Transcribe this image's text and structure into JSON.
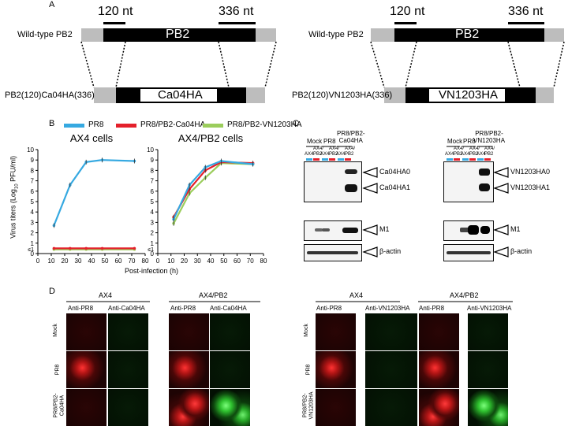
{
  "panels": {
    "A": "A",
    "B": "B",
    "C": "C",
    "D": "D"
  },
  "panelA": {
    "left": {
      "marker_left": "120 nt",
      "marker_right": "336 nt",
      "wt_label": "Wild-type PB2",
      "wt_box": "PB2",
      "recomb_label": "PB2(120)Ca04HA(336)",
      "insert": "Ca04HA"
    },
    "right": {
      "marker_left": "120 nt",
      "marker_right": "336 nt",
      "wt_label": "Wild-type PB2",
      "wt_box": "PB2",
      "recomb_label": "PB2(120)VN1203HA(336)",
      "insert": "VN1203HA"
    }
  },
  "panelB": {
    "legend": [
      {
        "name": "PR8",
        "color": "#36a9e1"
      },
      {
        "name": "PR8/PB2-Ca04HA",
        "color": "#e4202b"
      },
      {
        "name": "PR8/PB2-VN1203HA",
        "color": "#9bcd5c"
      }
    ],
    "ylabel": "Virus titers (Log",
    "ylabel_sub": "10",
    "ylabel_tail": " PFU/ml)",
    "xlabel": "Post-infection (h)",
    "lod_label": "≤1"
  },
  "chart_data": [
    {
      "type": "line",
      "title": "AX4 cells",
      "x": [
        12,
        24,
        36,
        48,
        72
      ],
      "xlim": [
        0,
        80
      ],
      "ylim": [
        0,
        10
      ],
      "xticks": [
        "0",
        "10",
        "20",
        "30",
        "40",
        "50",
        "60",
        "70",
        "80"
      ],
      "yticks": [
        "0",
        "1",
        "2",
        "3",
        "4",
        "5",
        "6",
        "7",
        "8",
        "9",
        "10"
      ],
      "series": [
        {
          "name": "PR8",
          "color": "#36a9e1",
          "values": [
            2.7,
            6.6,
            8.8,
            9.0,
            8.9
          ]
        },
        {
          "name": "PR8/PB2-Ca04HA",
          "color": "#e4202b",
          "values": [
            0.5,
            0.5,
            0.5,
            0.5,
            0.5
          ]
        },
        {
          "name": "PR8/PB2-VN1203HA",
          "color": "#9bcd5c",
          "values": [
            0.4,
            0.4,
            0.4,
            0.4,
            0.4
          ]
        }
      ]
    },
    {
      "type": "line",
      "title": "AX4/PB2 cells",
      "x": [
        12,
        24,
        36,
        48,
        72
      ],
      "xlim": [
        0,
        80
      ],
      "ylim": [
        0,
        10
      ],
      "xticks": [
        "0",
        "10",
        "20",
        "30",
        "40",
        "50",
        "60",
        "70",
        "80"
      ],
      "yticks": [
        "0",
        "1",
        "2",
        "3",
        "4",
        "5",
        "6",
        "7",
        "8",
        "9",
        "10"
      ],
      "series": [
        {
          "name": "PR8",
          "color": "#36a9e1",
          "values": [
            3.3,
            6.6,
            8.3,
            8.9,
            8.6
          ]
        },
        {
          "name": "PR8/PB2-Ca04HA",
          "color": "#e4202b",
          "values": [
            3.5,
            6.2,
            8.0,
            8.8,
            8.7
          ]
        },
        {
          "name": "PR8/PB2-VN1203HA",
          "color": "#9bcd5c",
          "values": [
            2.9,
            5.8,
            7.3,
            8.7,
            8.6
          ]
        }
      ]
    }
  ],
  "panelC": {
    "left": {
      "mock": "Mock",
      "pr8": "PR8",
      "virus": "PR8/PB2-\nCa04HA",
      "ax4": "AX4",
      "ax4pb2": "AX4/\nPB2",
      "ha0": "Ca04HA0",
      "ha1": "Ca04HA1",
      "m1": "M1",
      "actin": "β-actin"
    },
    "right": {
      "mock": "Mock",
      "pr8": "PR8",
      "virus": "PR8/PB2-\nVN1203HA",
      "ax4": "AX4",
      "ax4pb2": "AX4/\nPB2",
      "ha0": "VN1203HA0",
      "ha1": "VN1203HA1",
      "m1": "M1",
      "actin": "β-actin"
    }
  },
  "panelD": {
    "left": {
      "group1": "AX4",
      "group2": "AX4/PB2",
      "col_pr8": "Anti-PR8",
      "col_ha": "Anti-Ca04HA",
      "rows": [
        "Mock",
        "PR8",
        "PR8/PB2-\nCa04HA"
      ]
    },
    "right": {
      "group1": "AX4",
      "group2": "AX4/PB2",
      "col_pr8": "Anti-PR8",
      "col_ha": "Anti-VN1203HA",
      "rows": [
        "Mock",
        "PR8",
        "PR8/PB2-\nVN1203HA"
      ]
    }
  }
}
